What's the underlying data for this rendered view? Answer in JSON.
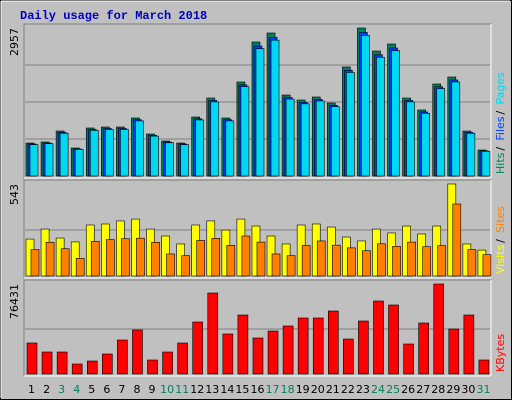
{
  "chart_data": [
    {
      "type": "bar",
      "title": "Daily usage for March 2018",
      "ymax": 2957,
      "series": [
        {
          "name": "Hits",
          "color": "#00805c",
          "values": [
            659,
            679,
            899,
            559,
            959,
            979,
            979,
            1159,
            839,
            699,
            659,
            1179,
            1558,
            1159,
            1878,
            2677,
            2857,
            1618,
            1518,
            1578,
            1458,
            2178,
            2957,
            2497,
            2637,
            1558,
            1319,
            1838,
            1978,
            899,
            519
          ]
        },
        {
          "name": "Files",
          "color": "#0040ff",
          "values": [
            640,
            659,
            872,
            542,
            930,
            950,
            950,
            1124,
            814,
            678,
            639,
            1144,
            1511,
            1124,
            1822,
            2597,
            2771,
            1569,
            1472,
            1531,
            1414,
            2113,
            2868,
            2422,
            2558,
            1511,
            1279,
            1783,
            1919,
            872,
            503
          ]
        },
        {
          "name": "Pages",
          "color": "#00d8f0",
          "values": [
            626,
            645,
            854,
            531,
            911,
            930,
            930,
            1101,
            797,
            664,
            626,
            1120,
            1480,
            1101,
            1784,
            2543,
            2714,
            1537,
            1442,
            1499,
            1385,
            2069,
            2809,
            2372,
            2505,
            1480,
            1253,
            1746,
            1879,
            854,
            493
          ]
        }
      ]
    },
    {
      "type": "bar",
      "ymax": 543,
      "series": [
        {
          "name": "Visits",
          "color": "#ffff00",
          "values": [
            218,
            277,
            224,
            201,
            301,
            307,
            325,
            336,
            277,
            236,
            189,
            301,
            325,
            271,
            336,
            295,
            236,
            189,
            301,
            307,
            289,
            230,
            207,
            277,
            254,
            295,
            248,
            295,
            543,
            189,
            153
          ]
        },
        {
          "name": "Sites",
          "color": "#ff8000",
          "values": [
            156,
            199,
            161,
            104,
            205,
            215,
            220,
            223,
            199,
            130,
            120,
            210,
            222,
            181,
            236,
            200,
            130,
            120,
            180,
            207,
            182,
            166,
            149,
            190,
            175,
            200,
            173,
            179,
            425,
            156,
            126
          ]
        }
      ]
    },
    {
      "type": "bar",
      "ymax": 76431,
      "categories": [
        "1",
        "2",
        "3",
        "4",
        "5",
        "6",
        "7",
        "8",
        "9",
        "10",
        "11",
        "12",
        "13",
        "14",
        "15",
        "16",
        "17",
        "18",
        "19",
        "20",
        "21",
        "22",
        "23",
        "24",
        "25",
        "26",
        "27",
        "28",
        "29",
        "30",
        "31"
      ],
      "category_colors": [
        "#000000",
        "#000000",
        "#00805c",
        "#00805c",
        "#000000",
        "#000000",
        "#000000",
        "#000000",
        "#000000",
        "#00805c",
        "#00805c",
        "#000000",
        "#000000",
        "#000000",
        "#000000",
        "#000000",
        "#00805c",
        "#00805c",
        "#000000",
        "#000000",
        "#000000",
        "#000000",
        "#000000",
        "#00805c",
        "#00805c",
        "#000000",
        "#000000",
        "#000000",
        "#000000",
        "#000000",
        "#00805c"
      ],
      "series": [
        {
          "name": "KBytes",
          "color": "#ff0000",
          "values": [
            26326,
            18683,
            18683,
            8492,
            11040,
            16985,
            28874,
            37366,
            11889,
            18683,
            26326,
            44160,
            68787,
            33969,
            50104,
            30572,
            36517,
            40763,
            47557,
            47557,
            53502,
            29723,
            45009,
            61994,
            58597,
            25477,
            43311,
            76431,
            38216,
            50104,
            11889
          ]
        }
      ]
    }
  ]
}
